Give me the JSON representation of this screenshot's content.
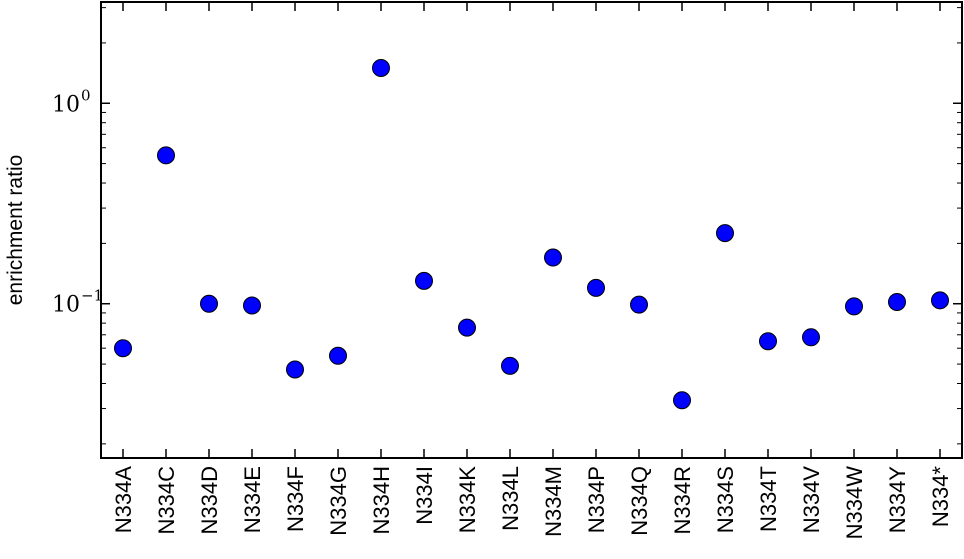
{
  "chart_data": {
    "type": "scatter",
    "title": "",
    "xlabel": "",
    "ylabel": "enrichment ratio",
    "yscale": "log",
    "ylim": [
      0.017,
      3.2
    ],
    "yticks": [
      {
        "value": 1,
        "base": "10",
        "exp": "0"
      },
      {
        "value": 0.1,
        "base": "10",
        "exp": "−1"
      }
    ],
    "categories": [
      "N334A",
      "N334C",
      "N334D",
      "N334E",
      "N334F",
      "N334G",
      "N334H",
      "N334I",
      "N334K",
      "N334L",
      "N334M",
      "N334P",
      "N334Q",
      "N334R",
      "N334S",
      "N334T",
      "N334V",
      "N334W",
      "N334Y",
      "N334*"
    ],
    "values": [
      0.06,
      0.55,
      0.1,
      0.098,
      0.047,
      0.055,
      1.5,
      0.13,
      0.076,
      0.049,
      0.17,
      0.12,
      0.099,
      0.033,
      0.225,
      0.065,
      0.068,
      0.097,
      0.102,
      0.104
    ],
    "marker_color": "#0000ff",
    "marker_edge": "#000000",
    "grid": false,
    "legend": "none"
  }
}
